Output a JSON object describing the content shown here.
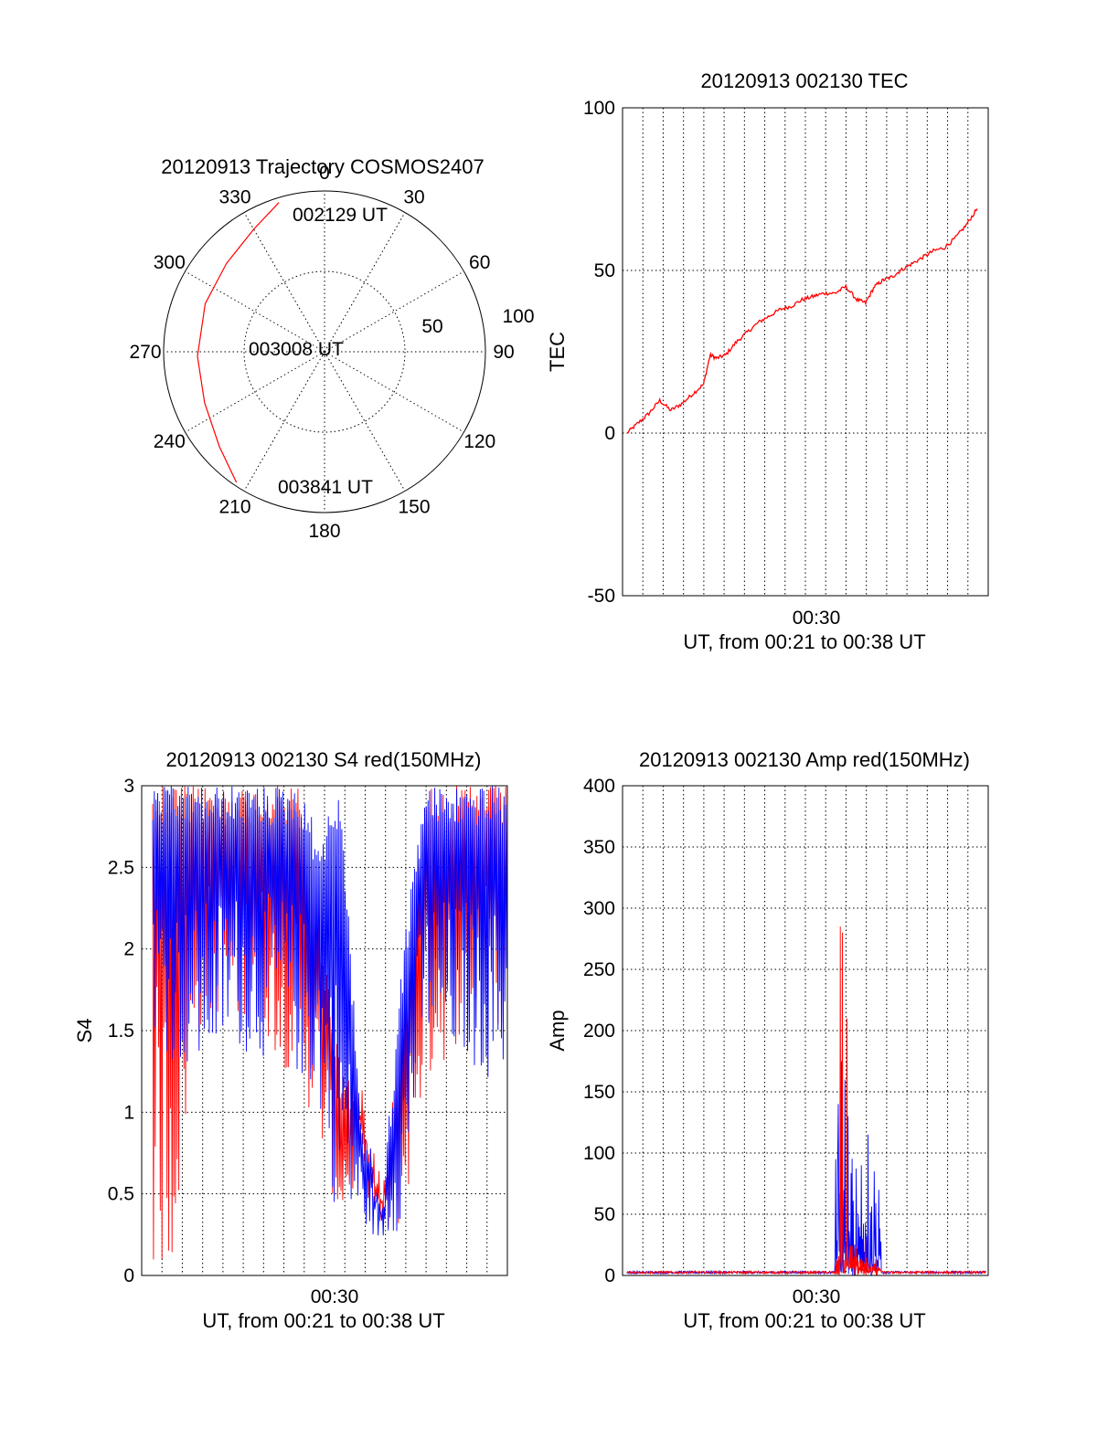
{
  "colors": {
    "red": "#ff0000",
    "blue": "#0000ff",
    "axis": "#000000"
  },
  "chart_data": [
    {
      "id": "trajectory",
      "type": "polar",
      "title": "20120913 Trajectory COSMOS2407",
      "angle_labels": [
        "0",
        "30",
        "60",
        "90",
        "120",
        "150",
        "180",
        "210",
        "240",
        "270",
        "300",
        "330"
      ],
      "radial_labels": [
        "50",
        "100"
      ],
      "annotations": [
        "002129 UT",
        "003008 UT",
        "003841 UT"
      ],
      "elevation_ticks": [
        50,
        100
      ],
      "track_color": "red",
      "track": [
        {
          "azimuth": 343,
          "zenith": 97
        },
        {
          "azimuth": 330,
          "zenith": 88
        },
        {
          "azimuth": 312,
          "zenith": 82
        },
        {
          "azimuth": 292,
          "zenith": 80
        },
        {
          "azimuth": 268,
          "zenith": 79
        },
        {
          "azimuth": 247,
          "zenith": 81
        },
        {
          "azimuth": 228,
          "zenith": 88
        },
        {
          "azimuth": 214,
          "zenith": 98
        }
      ]
    },
    {
      "id": "tec",
      "type": "line",
      "title": "20120913 002130 TEC",
      "ylabel": "TEC",
      "xlabel": "UT, from 00:21 to 00:38 UT",
      "x_tick_label": "00:30",
      "ylim": [
        -50,
        100
      ],
      "y_ticks": [
        "100",
        "50",
        "0",
        "-50"
      ],
      "series_color": "red",
      "x_minutes": [
        21.5,
        22.0,
        22.5,
        23.0,
        23.5,
        24.0,
        24.5,
        25.0,
        25.3,
        25.6,
        26.0,
        26.5,
        27.0,
        27.5,
        28.0,
        28.5,
        29.0,
        29.5,
        30.0,
        30.5,
        31.0,
        31.5,
        32.0,
        32.4,
        32.8,
        33.2,
        33.6,
        34.0,
        34.5,
        35.0,
        35.5,
        36.0,
        36.5,
        37.0,
        37.5
      ],
      "values": [
        0,
        3,
        6,
        10,
        7,
        9,
        12,
        15,
        24,
        23,
        24,
        28,
        31,
        34,
        36,
        38,
        39,
        41,
        42,
        43,
        43,
        45,
        41,
        40,
        45,
        47,
        48,
        50,
        52,
        54,
        56,
        57,
        60,
        64,
        69
      ]
    },
    {
      "id": "s4",
      "type": "line",
      "title": "20120913 002130 S4 red(150MHz)",
      "ylabel": "S4",
      "xlabel": "UT, from 00:21 to 00:38 UT",
      "x_tick_label": "00:30",
      "ylim": [
        0,
        3
      ],
      "y_ticks": [
        "3",
        "2.5",
        "2",
        "1.5",
        "1",
        "0.5",
        "0"
      ],
      "series": [
        {
          "color": "red",
          "envelope_min": [
            0.0,
            0.0,
            1.4,
            1.6,
            1.5,
            1.6,
            1.3,
            1.2,
            0.8,
            0.3,
            0.6,
            0.2,
            0.3,
            1.1,
            1.3,
            1.5,
            1.6,
            1.4
          ],
          "envelope_max": [
            3,
            3,
            3,
            3,
            3,
            3,
            3,
            3,
            2.2,
            1.3,
            1.2,
            0.6,
            1.6,
            3,
            3,
            3,
            3,
            3
          ]
        },
        {
          "color": "blue",
          "envelope_min": [
            1.5,
            1.3,
            1.2,
            1.3,
            1.4,
            1.3,
            1.4,
            1.2,
            1.0,
            0.2,
            0.3,
            0.2,
            0.3,
            1.4,
            1.3,
            1.3,
            1.2,
            1.1
          ],
          "envelope_max": [
            3,
            3,
            3,
            3,
            3,
            3,
            3,
            3,
            2.7,
            3.0,
            1.0,
            0.5,
            2.0,
            3,
            3,
            3,
            3,
            3
          ]
        }
      ]
    },
    {
      "id": "amp",
      "type": "line",
      "title": "20120913 002130 Amp red(150MHz)",
      "ylabel": "Amp",
      "xlabel": "UT, from 00:21 to 00:38 UT",
      "x_tick_label": "00:30",
      "ylim": [
        0,
        400
      ],
      "y_ticks": [
        "400",
        "350",
        "300",
        "250",
        "200",
        "150",
        "100",
        "50",
        "0"
      ],
      "series": [
        {
          "color": "blue",
          "peak_times": [
            31.15,
            31.3,
            31.45,
            31.6,
            32.2,
            32.5,
            32.8,
            33.0
          ],
          "peak_values": [
            140,
            175,
            160,
            130,
            90,
            115,
            85,
            70
          ]
        },
        {
          "color": "red",
          "peak_times": [
            31.25,
            31.35,
            31.55,
            32.4
          ],
          "peak_values": [
            285,
            280,
            210,
            30
          ]
        }
      ]
    }
  ]
}
